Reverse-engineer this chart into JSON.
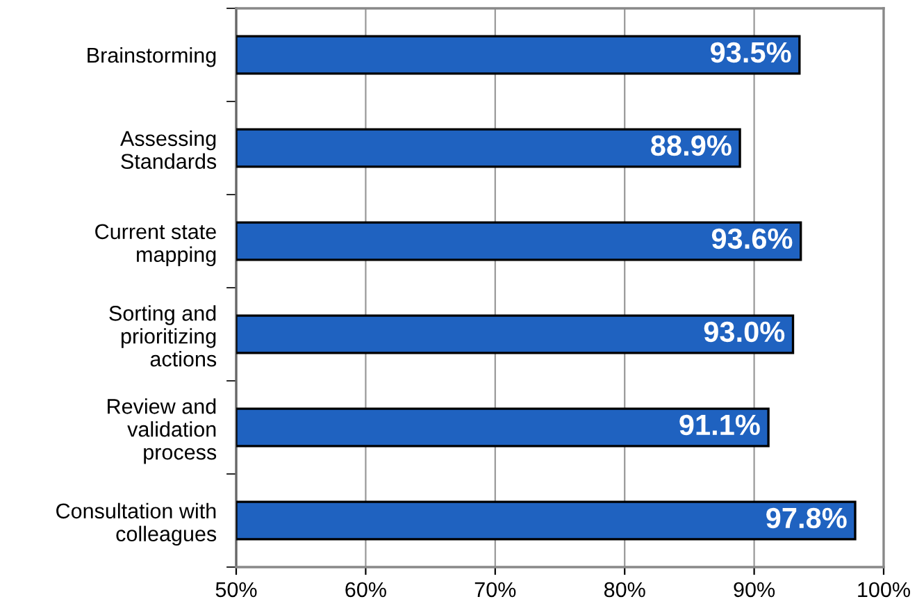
{
  "chart_data": {
    "type": "bar",
    "orientation": "horizontal",
    "categories": [
      "Brainstorming",
      "Assessing\nStandards",
      "Current state\nmapping",
      "Sorting and\nprioritizing\nactions",
      "Review and\nvalidation\nprocess",
      "Consultation with\ncolleagues"
    ],
    "values": [
      93.5,
      88.9,
      93.6,
      93.0,
      91.1,
      97.8
    ],
    "value_labels": [
      "93.5%",
      "88.9%",
      "93.6%",
      "93.0%",
      "91.1%",
      "97.8%"
    ],
    "color": "#1f62c0",
    "xlim": [
      50,
      100
    ],
    "xticks": [
      {
        "value": 50,
        "label": "50%"
      },
      {
        "value": 60,
        "label": "60%"
      },
      {
        "value": 70,
        "label": "70%"
      },
      {
        "value": 80,
        "label": "80%"
      },
      {
        "value": 90,
        "label": "90%"
      },
      {
        "value": 100,
        "label": "100%"
      }
    ],
    "grid": "x"
  }
}
